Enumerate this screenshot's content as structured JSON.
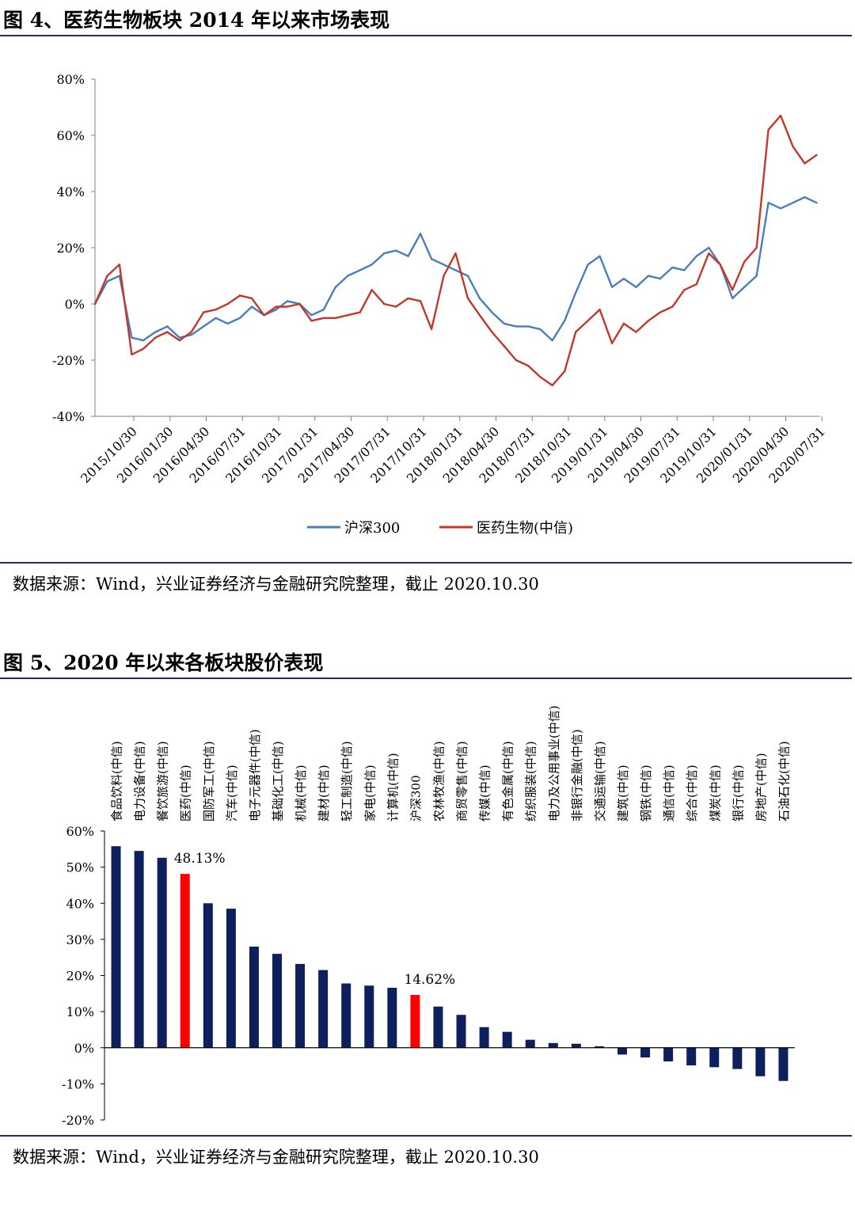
{
  "figure4": {
    "title": "图 4、医药生物板块 2014 年以来市场表现",
    "source": "数据来源：Wind，兴业证券经济与金融研究院整理，截止 2020.10.30"
  },
  "figure5": {
    "title": "图 5、2020 年以来各板块股价表现",
    "source": "数据来源：Wind，兴业证券经济与金融研究院整理，截止 2020.10.30"
  },
  "colors": {
    "hs300": "#4a7ebb",
    "pharma": "#c0392b",
    "bar": "#0d1f5c",
    "highlight": "#ff0000",
    "rule": "#1f2d5c"
  },
  "chart_data": [
    {
      "type": "line",
      "title": "",
      "xlabel": "",
      "ylabel": "",
      "ylim": [
        -40,
        80
      ],
      "yticks": [
        "80%",
        "60%",
        "40%",
        "20%",
        "0%",
        "-20%",
        "-40%"
      ],
      "x_tick_labels": [
        "2015/10/30",
        "2016/01/30",
        "2016/04/30",
        "2016/07/31",
        "2016/10/31",
        "2017/01/31",
        "2017/04/30",
        "2017/07/31",
        "2017/10/31",
        "2018/01/31",
        "2018/04/30",
        "2018/07/31",
        "2018/10/31",
        "2019/01/31",
        "2019/04/30",
        "2019/07/31",
        "2019/10/31",
        "2020/01/31",
        "2020/04/30",
        "2020/07/31"
      ],
      "legend_position": "bottom",
      "grid": false,
      "series": [
        {
          "name": "沪深300",
          "x": [
            "2015/10/30",
            "2015/11/30",
            "2015/12/31",
            "2016/01/31",
            "2016/02/29",
            "2016/03/31",
            "2016/04/30",
            "2016/05/31",
            "2016/06/30",
            "2016/07/31",
            "2016/08/31",
            "2016/09/30",
            "2016/10/31",
            "2016/11/30",
            "2016/12/31",
            "2017/01/31",
            "2017/02/28",
            "2017/03/31",
            "2017/04/30",
            "2017/05/31",
            "2017/06/30",
            "2017/07/31",
            "2017/08/31",
            "2017/09/30",
            "2017/10/31",
            "2017/11/30",
            "2017/12/31",
            "2018/01/31",
            "2018/02/28",
            "2018/03/31",
            "2018/04/30",
            "2018/05/31",
            "2018/06/30",
            "2018/07/31",
            "2018/08/31",
            "2018/09/30",
            "2018/10/31",
            "2018/11/30",
            "2018/12/31",
            "2019/01/31",
            "2019/02/28",
            "2019/03/31",
            "2019/04/30",
            "2019/05/31",
            "2019/06/30",
            "2019/07/31",
            "2019/08/31",
            "2019/09/30",
            "2019/10/31",
            "2019/11/30",
            "2019/12/31",
            "2020/01/31",
            "2020/02/29",
            "2020/03/31",
            "2020/04/30",
            "2020/05/31",
            "2020/06/30",
            "2020/07/31",
            "2020/08/31",
            "2020/09/30",
            "2020/10/30"
          ],
          "values": [
            0,
            8,
            10,
            -12,
            -13,
            -10,
            -8,
            -12,
            -11,
            -8,
            -5,
            -7,
            -5,
            -1,
            -4,
            -2,
            1,
            0,
            -4,
            -2,
            6,
            10,
            12,
            14,
            18,
            19,
            17,
            25,
            16,
            14,
            12,
            10,
            2,
            -3,
            -7,
            -8,
            -8,
            -9,
            -13,
            -6,
            4,
            14,
            17,
            6,
            9,
            6,
            10,
            9,
            13,
            12,
            17,
            20,
            14,
            2,
            6,
            10,
            36,
            34,
            36,
            38,
            36
          ]
        },
        {
          "name": "医药生物(中信)",
          "x": [
            "2015/10/30",
            "2015/11/30",
            "2015/12/31",
            "2016/01/31",
            "2016/02/29",
            "2016/03/31",
            "2016/04/30",
            "2016/05/31",
            "2016/06/30",
            "2016/07/31",
            "2016/08/31",
            "2016/09/30",
            "2016/10/31",
            "2016/11/30",
            "2016/12/31",
            "2017/01/31",
            "2017/02/28",
            "2017/03/31",
            "2017/04/30",
            "2017/05/31",
            "2017/06/30",
            "2017/07/31",
            "2017/08/31",
            "2017/09/30",
            "2017/10/31",
            "2017/11/30",
            "2017/12/31",
            "2018/01/31",
            "2018/02/28",
            "2018/03/31",
            "2018/04/30",
            "2018/05/31",
            "2018/06/30",
            "2018/07/31",
            "2018/08/31",
            "2018/09/30",
            "2018/10/31",
            "2018/11/30",
            "2018/12/31",
            "2019/01/31",
            "2019/02/28",
            "2019/03/31",
            "2019/04/30",
            "2019/05/31",
            "2019/06/30",
            "2019/07/31",
            "2019/08/31",
            "2019/09/30",
            "2019/10/31",
            "2019/11/30",
            "2019/12/31",
            "2020/01/31",
            "2020/02/29",
            "2020/03/31",
            "2020/04/30",
            "2020/05/31",
            "2020/06/30",
            "2020/07/31",
            "2020/08/31",
            "2020/09/30",
            "2020/10/30"
          ],
          "values": [
            0,
            10,
            14,
            -18,
            -16,
            -12,
            -10,
            -13,
            -10,
            -3,
            -2,
            0,
            3,
            2,
            -4,
            -1,
            -1,
            0,
            -6,
            -5,
            -5,
            -4,
            -3,
            5,
            0,
            -1,
            2,
            1,
            -9,
            10,
            18,
            2,
            -4,
            -10,
            -15,
            -20,
            -22,
            -26,
            -29,
            -24,
            -10,
            -6,
            -2,
            -14,
            -7,
            -10,
            -6,
            -3,
            -1,
            5,
            7,
            18,
            14,
            5,
            15,
            20,
            62,
            67,
            56,
            50,
            53
          ]
        }
      ]
    },
    {
      "type": "bar",
      "title": "",
      "xlabel": "",
      "ylabel": "",
      "ylim": [
        -20,
        60
      ],
      "yticks": [
        "60%",
        "50%",
        "40%",
        "30%",
        "20%",
        "10%",
        "0%",
        "-10%",
        "-20%"
      ],
      "categories": [
        "食品饮料(中信)",
        "电力设备(中信)",
        "餐饮旅游(中信)",
        "医药(中信)",
        "国防军工(中信)",
        "汽车(中信)",
        "电子元器件(中信)",
        "基础化工(中信)",
        "机械(中信)",
        "建材(中信)",
        "轻工制造(中信)",
        "家电(中信)",
        "计算机(中信)",
        "沪深300",
        "农林牧渔(中信)",
        "商贸零售(中信)",
        "传媒(中信)",
        "有色金属(中信)",
        "纺织服装(中信)",
        "电力及公用事业(中信)",
        "非银行金融(中信)",
        "交通运输(中信)",
        "建筑(中信)",
        "钢铁(中信)",
        "通信(中信)",
        "综合(中信)",
        "煤炭(中信)",
        "银行(中信)",
        "房地产(中信)",
        "石油石化(中信)"
      ],
      "values": [
        55.8,
        54.5,
        52.6,
        48.13,
        40,
        38.5,
        28,
        26,
        23.2,
        21.5,
        17.8,
        17.2,
        16.6,
        14.62,
        11.4,
        9.1,
        5.7,
        4.4,
        2.2,
        1.3,
        1.1,
        0.4,
        -1.9,
        -2.7,
        -3.8,
        -4.9,
        -5.4,
        -5.9,
        -7.9,
        -9.2
      ],
      "highlight": [
        "医药(中信)",
        "沪深300"
      ],
      "data_labels": [
        {
          "category": "医药(中信)",
          "text": "48.13%"
        },
        {
          "category": "沪深300",
          "text": "14.62%"
        }
      ]
    }
  ]
}
